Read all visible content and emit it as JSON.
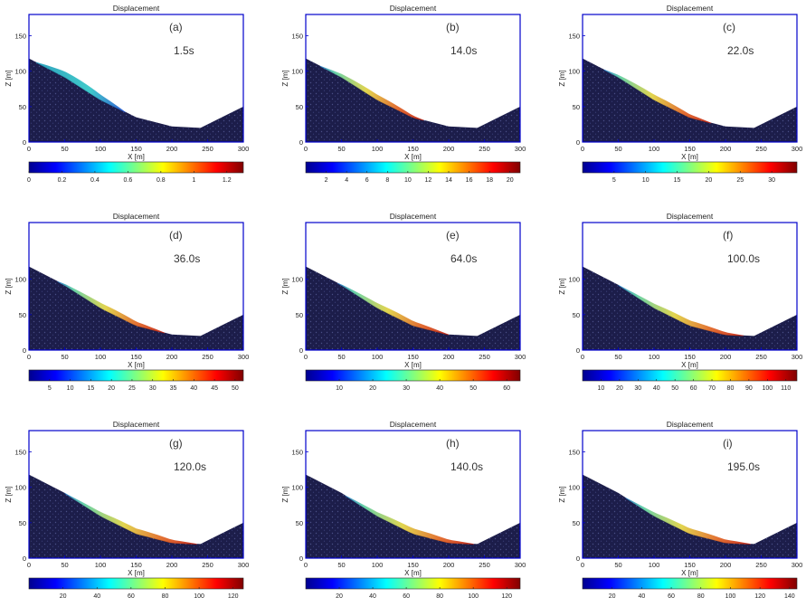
{
  "panels": [
    {
      "title": "Displacement",
      "label": "(a)",
      "time": "1.5s",
      "xlabel": "X [m]",
      "ylabel": "Z [m]",
      "xticks": [
        "0",
        "50",
        "100",
        "150",
        "200",
        "250",
        "300"
      ],
      "yticks": [
        "0",
        "50",
        "100",
        "150"
      ],
      "cbar_ticks": [
        "0",
        "0.2",
        "0.4",
        "0.6",
        "0.8",
        "1",
        "1.2"
      ],
      "cbar_range": [
        0,
        1.3
      ],
      "cbar_tick_values": [
        0,
        0.2,
        0.4,
        0.6,
        0.8,
        1,
        1.2
      ]
    },
    {
      "title": "Displacement",
      "label": "(b)",
      "time": "14.0s",
      "xlabel": "X [m]",
      "ylabel": "Z [m]",
      "xticks": [
        "0",
        "50",
        "100",
        "150",
        "200",
        "250",
        "300"
      ],
      "yticks": [
        "0",
        "50",
        "100",
        "150"
      ],
      "cbar_ticks": [
        "2",
        "4",
        "6",
        "8",
        "10",
        "12",
        "14",
        "16",
        "18",
        "20"
      ],
      "cbar_range": [
        0,
        21
      ],
      "cbar_tick_values": [
        2,
        4,
        6,
        8,
        10,
        12,
        14,
        16,
        18,
        20
      ]
    },
    {
      "title": "Displacement",
      "label": "(c)",
      "time": "22.0s",
      "xlabel": "X [m]",
      "ylabel": "Z [m]",
      "xticks": [
        "0",
        "50",
        "100",
        "150",
        "200",
        "250",
        "300"
      ],
      "yticks": [
        "0",
        "50",
        "100",
        "150"
      ],
      "cbar_ticks": [
        "5",
        "10",
        "15",
        "20",
        "25",
        "30"
      ],
      "cbar_range": [
        0,
        34
      ],
      "cbar_tick_values": [
        5,
        10,
        15,
        20,
        25,
        30
      ]
    },
    {
      "title": "Displacement",
      "label": "(d)",
      "time": "36.0s",
      "xlabel": "X [m]",
      "ylabel": "Z [m]",
      "xticks": [
        "0",
        "50",
        "100",
        "150",
        "200",
        "250",
        "300"
      ],
      "yticks": [
        "0",
        "50",
        "100"
      ],
      "cbar_ticks": [
        "5",
        "10",
        "15",
        "20",
        "25",
        "30",
        "35",
        "40",
        "45",
        "50"
      ],
      "cbar_range": [
        0,
        52
      ],
      "cbar_tick_values": [
        5,
        10,
        15,
        20,
        25,
        30,
        35,
        40,
        45,
        50
      ]
    },
    {
      "title": "Displacement",
      "label": "(e)",
      "time": "64.0s",
      "xlabel": "X [m]",
      "ylabel": "Z [m]",
      "xticks": [
        "0",
        "50",
        "100",
        "150",
        "200",
        "250",
        "300"
      ],
      "yticks": [
        "0",
        "50",
        "100"
      ],
      "cbar_ticks": [
        "10",
        "20",
        "30",
        "40",
        "50",
        "60"
      ],
      "cbar_range": [
        0,
        64
      ],
      "cbar_tick_values": [
        10,
        20,
        30,
        40,
        50,
        60
      ]
    },
    {
      "title": "Displacement",
      "label": "(f)",
      "time": "100.0s",
      "xlabel": "X [m]",
      "ylabel": "Z [m]",
      "xticks": [
        "0",
        "50",
        "100",
        "150",
        "200",
        "250",
        "300"
      ],
      "yticks": [
        "0",
        "50",
        "100"
      ],
      "cbar_ticks": [
        "10",
        "20",
        "30",
        "40",
        "50",
        "60",
        "70",
        "80",
        "90",
        "100",
        "110"
      ],
      "cbar_range": [
        0,
        116
      ],
      "cbar_tick_values": [
        10,
        20,
        30,
        40,
        50,
        60,
        70,
        80,
        90,
        100,
        110
      ]
    },
    {
      "title": "Displacement",
      "label": "(g)",
      "time": "120.0s",
      "xlabel": "X [m]",
      "ylabel": "Z [m]",
      "xticks": [
        "0",
        "50",
        "100",
        "150",
        "200",
        "250",
        "300"
      ],
      "yticks": [
        "0",
        "50",
        "100",
        "150"
      ],
      "cbar_ticks": [
        "20",
        "40",
        "60",
        "80",
        "100",
        "120"
      ],
      "cbar_range": [
        0,
        126
      ],
      "cbar_tick_values": [
        20,
        40,
        60,
        80,
        100,
        120
      ]
    },
    {
      "title": "Displacement",
      "label": "(h)",
      "time": "140.0s",
      "xlabel": "X [m]",
      "ylabel": "Z [m]",
      "xticks": [
        "0",
        "50",
        "100",
        "150",
        "200",
        "250",
        "300"
      ],
      "yticks": [
        "0",
        "50",
        "100",
        "150"
      ],
      "cbar_ticks": [
        "20",
        "40",
        "60",
        "80",
        "100",
        "120"
      ],
      "cbar_range": [
        0,
        128
      ],
      "cbar_tick_values": [
        20,
        40,
        60,
        80,
        100,
        120
      ]
    },
    {
      "title": "Displacement",
      "label": "(i)",
      "time": "195.0s",
      "xlabel": "X [m]",
      "ylabel": "Z [m]",
      "xticks": [
        "0",
        "50",
        "100",
        "150",
        "200",
        "250",
        "300"
      ],
      "yticks": [
        "0",
        "50",
        "100",
        "150"
      ],
      "cbar_ticks": [
        "20",
        "40",
        "60",
        "80",
        "100",
        "120",
        "140"
      ],
      "cbar_range": [
        0,
        145
      ],
      "cbar_tick_values": [
        20,
        40,
        60,
        80,
        100,
        120,
        140
      ]
    }
  ],
  "chart_data": {
    "type": "area",
    "title": "Displacement",
    "xlabel": "X [m]",
    "ylabel": "Z [m]",
    "xlim": [
      0,
      300
    ],
    "ylim": [
      0,
      180
    ],
    "terrain_profile": {
      "x": [
        0,
        50,
        100,
        150,
        200,
        240,
        300
      ],
      "z": [
        118,
        92,
        60,
        35,
        22,
        20,
        50
      ]
    },
    "slide_mass": [
      {
        "panel": "(a)",
        "time": "1.5s",
        "x_range": [
          10,
          135
        ],
        "max_displacement": 1.25
      },
      {
        "panel": "(b)",
        "time": "14.0s",
        "x_range": [
          20,
          165
        ],
        "max_displacement": 20.5
      },
      {
        "panel": "(c)",
        "time": "22.0s",
        "x_range": [
          30,
          180
        ],
        "max_displacement": 33
      },
      {
        "panel": "(d)",
        "time": "36.0s",
        "x_range": [
          40,
          190
        ],
        "max_displacement": 51
      },
      {
        "panel": "(e)",
        "time": "64.0s",
        "x_range": [
          45,
          200
        ],
        "max_displacement": 63
      },
      {
        "panel": "(f)",
        "time": "100.0s",
        "x_range": [
          50,
          225
        ],
        "max_displacement": 115
      },
      {
        "panel": "(g)",
        "time": "120.0s",
        "x_range": [
          50,
          235
        ],
        "max_displacement": 125
      },
      {
        "panel": "(h)",
        "time": "140.0s",
        "x_range": [
          55,
          235
        ],
        "max_displacement": 127
      },
      {
        "panel": "(i)",
        "time": "195.0s",
        "x_range": [
          60,
          235
        ],
        "max_displacement": 144
      }
    ],
    "colormap": "jet"
  },
  "colors": {
    "soil": "#1c1d4a",
    "axes": "#0000cc",
    "text": "#222222"
  }
}
